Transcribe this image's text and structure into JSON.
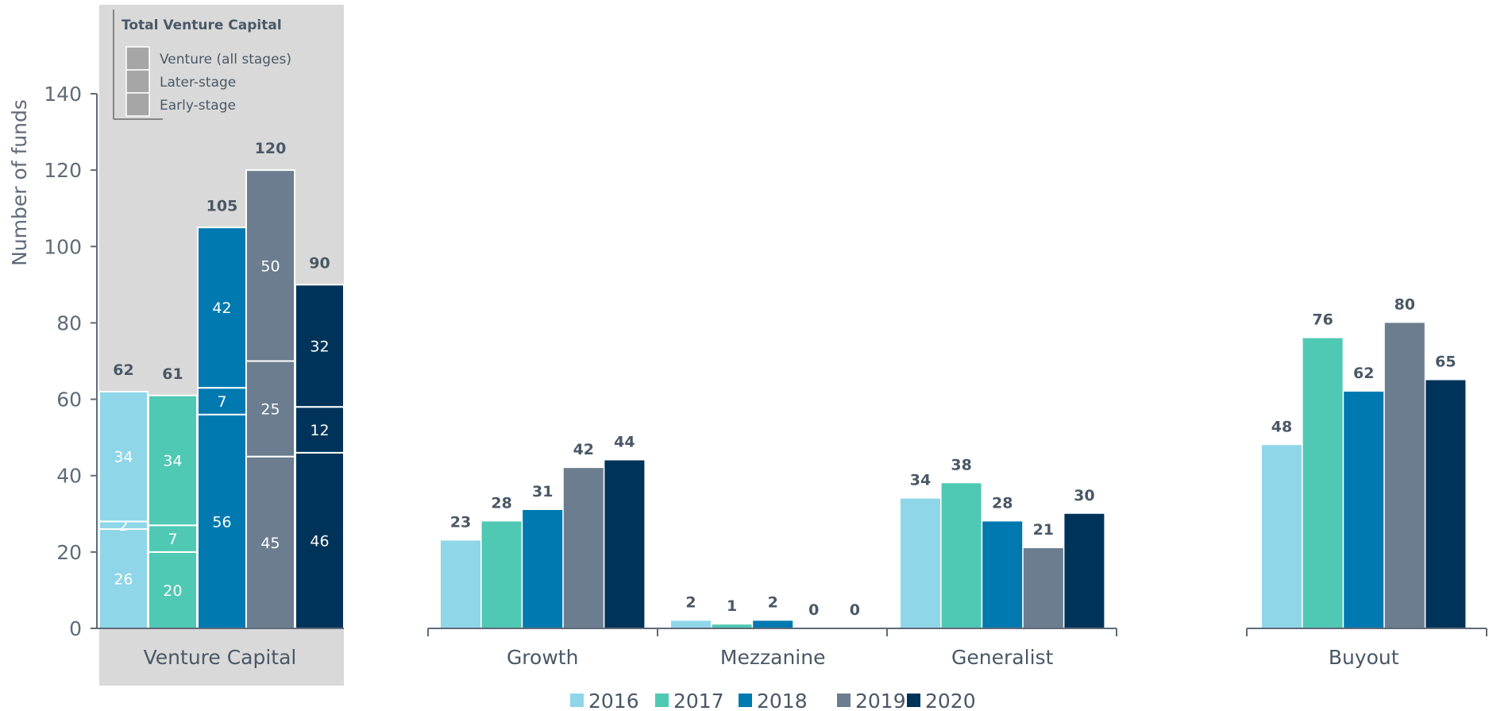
{
  "chart_data": {
    "type": "bar",
    "ylabel": "Number of funds",
    "ylim": [
      0,
      150
    ],
    "yticks": [
      0,
      20,
      40,
      60,
      80,
      100,
      120,
      140
    ],
    "years": [
      "2016",
      "2017",
      "2018",
      "2019",
      "2020"
    ],
    "colors": {
      "2016": "#8fd6e8",
      "2017": "#4fc8b4",
      "2018": "#0079b0",
      "2019": "#6b7d8f",
      "2020": "#003359"
    },
    "venture_capital": {
      "label": "Venture Capital",
      "legend_title": "Total Venture Capital",
      "legend_items": [
        "Venture (all stages)",
        "Later-stage",
        "Early-stage"
      ],
      "totals": [
        62,
        61,
        105,
        120,
        90
      ],
      "early_stage": [
        26,
        20,
        56,
        45,
        46
      ],
      "venture_all_stages": [
        2,
        7,
        7,
        25,
        12
      ],
      "later_stage": [
        34,
        34,
        42,
        50,
        32
      ]
    },
    "groups": [
      {
        "label": "Growth",
        "values": [
          23,
          28,
          31,
          42,
          44
        ]
      },
      {
        "label": "Mezzanine",
        "values": [
          2,
          1,
          2,
          0,
          0
        ]
      },
      {
        "label": "Generalist",
        "values": [
          34,
          38,
          28,
          21,
          30
        ]
      },
      {
        "label": "Buyout",
        "values": [
          48,
          76,
          62,
          80,
          65
        ]
      }
    ]
  }
}
